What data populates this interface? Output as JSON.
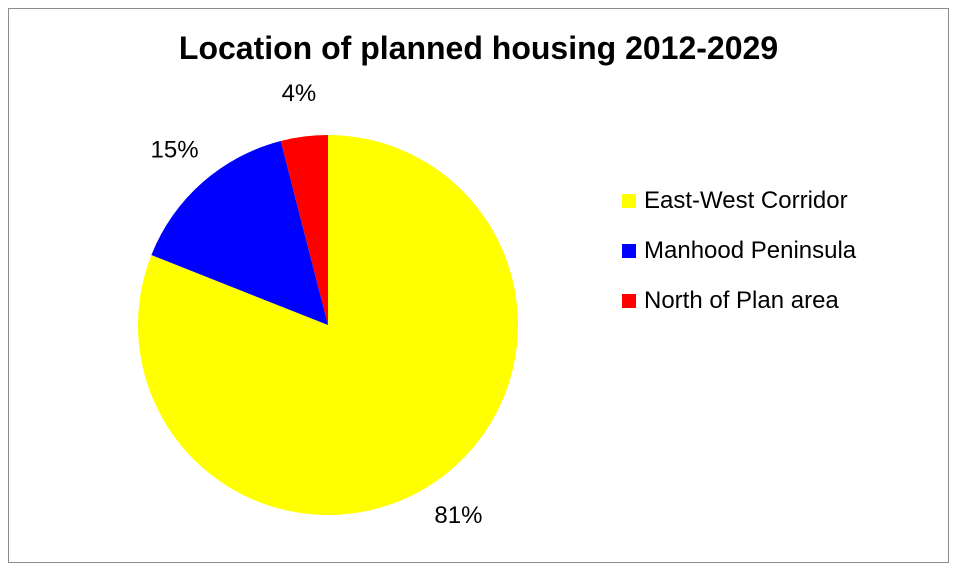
{
  "chart_data": {
    "type": "pie",
    "title": "Location of planned housing 2012-2029",
    "slices": [
      {
        "label": "East-West Corridor",
        "value": 81,
        "display": "81%",
        "color": "#ffff00"
      },
      {
        "label": "Manhood Peninsula",
        "value": 15,
        "display": "15%",
        "color": "#0000ff"
      },
      {
        "label": "North of Plan area",
        "value": 4,
        "display": "4%",
        "color": "#ff0000"
      }
    ],
    "legend_position": "right"
  }
}
